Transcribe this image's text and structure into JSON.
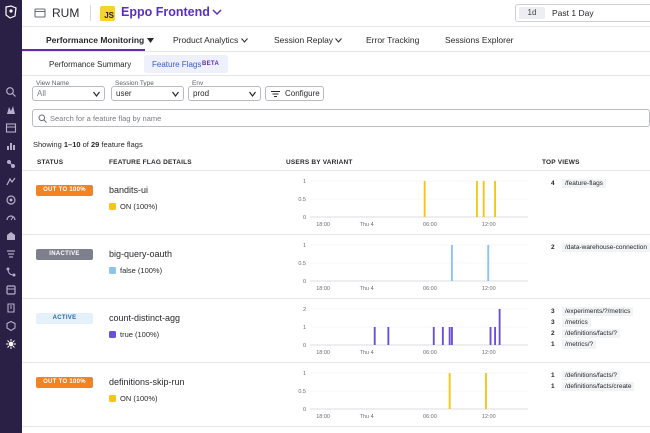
{
  "topbar": {
    "product": "RUM",
    "app_badge": "JS",
    "app_name": "Eppo Frontend",
    "time_chip": "1d",
    "time_label": "Past 1 Day"
  },
  "nav": {
    "items": [
      {
        "label": "Performance Monitoring",
        "active": true
      },
      {
        "label": "Product Analytics"
      },
      {
        "label": "Session Replay"
      },
      {
        "label": "Error Tracking"
      },
      {
        "label": "Sessions Explorer"
      }
    ]
  },
  "subnav": {
    "items": [
      "Performance Summary",
      "Feature Flags"
    ],
    "beta": "BETA"
  },
  "filters": [
    {
      "label": "View Name",
      "value": "All"
    },
    {
      "label": "Session Type",
      "value": "user"
    },
    {
      "label": "Env",
      "value": "prod"
    }
  ],
  "configure_label": "Configure",
  "search": {
    "placeholder": "Search for a feature flag by name",
    "value": ""
  },
  "showing": {
    "prefix": "Showing ",
    "range": "1–10",
    "middle": " of ",
    "total": "29",
    "suffix": " feature flags"
  },
  "table": {
    "columns": [
      "STATUS",
      "FEATURE FLAG DETAILS",
      "USERS BY VARIANT",
      "TOP VIEWS"
    ],
    "x_ticks": [
      "18:00",
      "Thu 4",
      "06:00",
      "12:00"
    ],
    "rows": [
      {
        "status": "OUT TO 100%",
        "name": "bandits-ui",
        "variant": "ON (100%)",
        "variant_color": "#f5c518",
        "y_ticks": [
          "1",
          "0.5",
          "0"
        ],
        "y_max": 1,
        "bars": [
          0,
          0,
          0,
          0,
          0,
          0,
          0,
          0,
          0,
          0,
          0,
          0,
          0,
          0,
          0,
          0,
          0,
          0,
          0,
          0,
          0,
          0,
          0,
          0,
          0,
          0,
          0,
          0,
          0,
          0,
          0,
          0,
          0,
          0,
          0,
          0,
          0,
          0,
          0,
          0,
          0,
          0,
          0,
          0,
          0,
          0,
          0,
          0,
          0,
          0,
          1,
          0,
          0,
          0,
          0,
          0,
          0,
          0,
          0,
          0,
          0,
          0,
          0,
          0,
          0,
          0,
          0,
          0,
          0,
          0,
          0,
          0,
          0,
          1,
          0,
          0,
          1,
          0,
          0,
          0,
          0,
          1,
          0,
          0,
          0,
          0,
          0,
          0,
          0,
          0,
          0,
          0,
          0,
          0,
          0,
          0
        ],
        "top_views": [
          {
            "count": "4",
            "path": "/feature-flags"
          }
        ]
      },
      {
        "status": "INACTIVE",
        "name": "big-query-oauth",
        "variant": "false (100%)",
        "variant_color": "#8ec4ec",
        "y_ticks": [
          "1",
          "0.5",
          "0"
        ],
        "y_max": 1,
        "bars": [
          0,
          0,
          0,
          0,
          0,
          0,
          0,
          0,
          0,
          0,
          0,
          0,
          0,
          0,
          0,
          0,
          0,
          0,
          0,
          0,
          0,
          0,
          0,
          0,
          0,
          0,
          0,
          0,
          0,
          0,
          0,
          0,
          0,
          0,
          0,
          0,
          0,
          0,
          0,
          0,
          0,
          0,
          0,
          0,
          0,
          0,
          0,
          0,
          0,
          0,
          0,
          0,
          0,
          0,
          0,
          0,
          0,
          0,
          0,
          0,
          0,
          0,
          1,
          0,
          0,
          0,
          0,
          0,
          0,
          0,
          0,
          0,
          0,
          0,
          0,
          0,
          0,
          0,
          1,
          0,
          0,
          0,
          0,
          0,
          0,
          0,
          0,
          0,
          0,
          0,
          0,
          0,
          0,
          0,
          0,
          0
        ],
        "top_views": [
          {
            "count": "2",
            "path": "/data-warehouse-connection"
          }
        ]
      },
      {
        "status": "ACTIVE",
        "name": "count-distinct-agg",
        "variant": "true (100%)",
        "variant_color": "#6a4fd8",
        "y_ticks": [
          "2",
          "1",
          "0"
        ],
        "y_max": 2,
        "bars": [
          0,
          0,
          0,
          0,
          0,
          0,
          0,
          0,
          0,
          0,
          0,
          0,
          0,
          0,
          0,
          0,
          0,
          0,
          0,
          0,
          0,
          0,
          0,
          0,
          0,
          0,
          0,
          0,
          1,
          0,
          0,
          0,
          0,
          0,
          1,
          0,
          0,
          0,
          0,
          0,
          0,
          0,
          0,
          0,
          0,
          0,
          0,
          0,
          0,
          0,
          0,
          0,
          0,
          0,
          1,
          0,
          0,
          0,
          1,
          0,
          0,
          1,
          1,
          0,
          0,
          0,
          0,
          0,
          0,
          0,
          0,
          0,
          0,
          0,
          0,
          0,
          0,
          0,
          0,
          1,
          0,
          1,
          0,
          2,
          0,
          0,
          0,
          0,
          0,
          0,
          0,
          0,
          0,
          0,
          0,
          0
        ],
        "top_views": [
          {
            "count": "3",
            "path": "/experiments/?/metrics"
          },
          {
            "count": "3",
            "path": "/metrics"
          },
          {
            "count": "2",
            "path": "/definitions/facts/?"
          },
          {
            "count": "1",
            "path": "/metrics/?"
          }
        ]
      },
      {
        "status": "OUT TO 100%",
        "name": "definitions-skip-run",
        "variant": "ON (100%)",
        "variant_color": "#f5c518",
        "y_ticks": [
          "1",
          "0.5",
          "0"
        ],
        "y_max": 1,
        "bars": [
          0,
          0,
          0,
          0,
          0,
          0,
          0,
          0,
          0,
          0,
          0,
          0,
          0,
          0,
          0,
          0,
          0,
          0,
          0,
          0,
          0,
          0,
          0,
          0,
          0,
          0,
          0,
          0,
          0,
          0,
          0,
          0,
          0,
          0,
          0,
          0,
          0,
          0,
          0,
          0,
          0,
          0,
          0,
          0,
          0,
          0,
          0,
          0,
          0,
          0,
          0,
          0,
          0,
          0,
          0,
          0,
          0,
          0,
          0,
          0,
          0,
          1,
          0,
          0,
          0,
          0,
          0,
          0,
          0,
          0,
          0,
          0,
          0,
          0,
          0,
          0,
          0,
          1,
          0,
          0,
          0,
          0,
          0,
          0,
          0,
          0,
          0,
          0,
          0,
          0,
          0,
          0,
          0,
          0,
          0,
          0
        ],
        "top_views": [
          {
            "count": "1",
            "path": "/definitions/facts/?"
          },
          {
            "count": "1",
            "path": "/definitions/facts/create"
          }
        ]
      }
    ]
  },
  "colors": {
    "accent": "#632ca6",
    "sidebar": "#2a1f44",
    "orange_badge": "#f58220",
    "inactive_badge": "#7d7f8c",
    "active_badge_bg": "#e4f1fb",
    "active_badge_text": "#2a6aa8"
  }
}
